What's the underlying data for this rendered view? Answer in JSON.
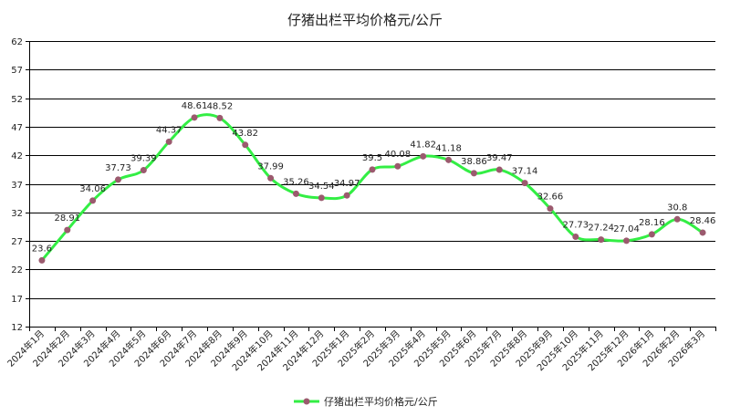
{
  "chart_data": {
    "type": "line",
    "title": "仔猪出栏平均价格元/公斤",
    "xlabel": "",
    "ylabel": "",
    "ylim": [
      12,
      62
    ],
    "yticks": [
      12,
      17,
      22,
      27,
      32,
      37,
      42,
      47,
      52,
      57,
      62
    ],
    "grid": true,
    "legend": "bottom",
    "categories": [
      "2024年1月",
      "2024年2月",
      "2024年3月",
      "2024年4月",
      "2024年5月",
      "2024年6月",
      "2024年7月",
      "2024年8月",
      "2024年9月",
      "2024年10月",
      "2024年11月",
      "2024年12月",
      "2025年1月",
      "2025年2月",
      "2025年3月",
      "2025年4月",
      "2025年5月",
      "2025年6月",
      "2025年7月",
      "2025年8月",
      "2025年9月",
      "2025年10月",
      "2025年11月",
      "2025年12月",
      "2026年1月",
      "2026年2月",
      "2026年3月"
    ],
    "series": [
      {
        "name": "仔猪出栏平均价格元/公斤",
        "values": [
          23.6,
          28.91,
          34.06,
          37.73,
          39.39,
          44.37,
          48.61,
          48.52,
          43.82,
          37.99,
          35.26,
          34.54,
          34.97,
          39.5,
          40.08,
          41.82,
          41.18,
          38.86,
          39.47,
          37.14,
          32.66,
          27.73,
          27.24,
          27.04,
          28.16,
          30.8,
          28.46
        ],
        "labels": [
          "23.6",
          "28.91",
          "34.06",
          "37.73",
          "39.39",
          "44.37",
          "48.61",
          "48.52",
          "43.82",
          "37.99",
          "35.26",
          "34.54",
          "34.97",
          "39.5",
          "40.08",
          "41.82",
          "41.18",
          "38.86",
          "39.47",
          "37.14",
          "32.66",
          "27.73",
          "27.24",
          "27.04",
          "28.16",
          "30.8",
          "28.46"
        ],
        "line_color": "#33ee44",
        "marker_color": "#9b5a6e"
      }
    ]
  }
}
